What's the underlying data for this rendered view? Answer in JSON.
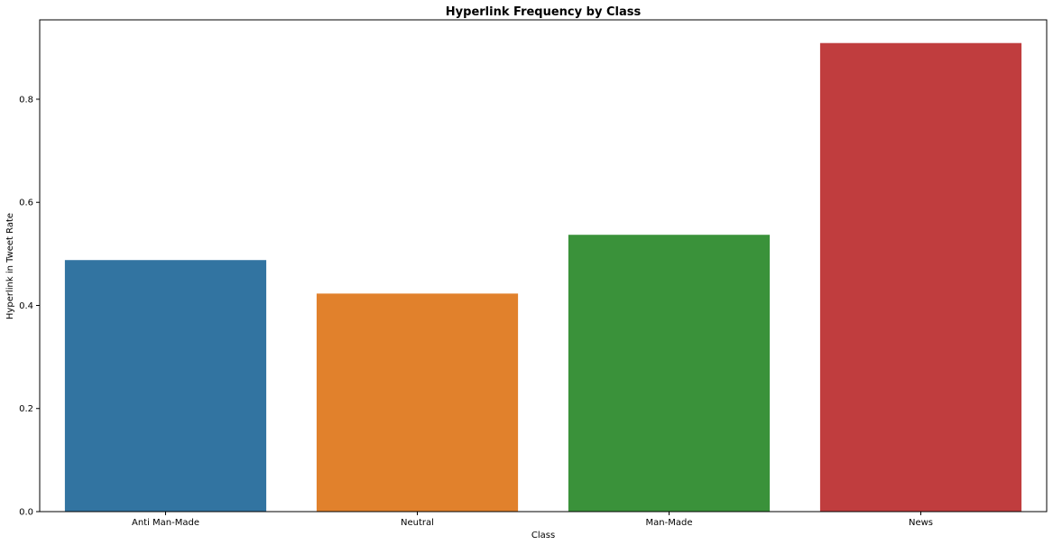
{
  "chart_data": {
    "type": "bar",
    "title": "Hyperlink Frequency by Class",
    "xlabel": "Class",
    "ylabel": "Hyperlink in Tweet Rate",
    "categories": [
      "Anti Man-Made",
      "Neutral",
      "Man-Made",
      "News"
    ],
    "values": [
      0.488,
      0.423,
      0.537,
      0.909
    ],
    "colors": [
      "#3274a1",
      "#e1812c",
      "#3a923a",
      "#c03d3e"
    ],
    "ylim": [
      0,
      0.954
    ],
    "yticks": [
      0.0,
      0.2,
      0.4,
      0.6,
      0.8
    ],
    "ytick_labels": [
      "0.0",
      "0.2",
      "0.4",
      "0.6",
      "0.8"
    ],
    "grid": false,
    "legend": "none"
  }
}
